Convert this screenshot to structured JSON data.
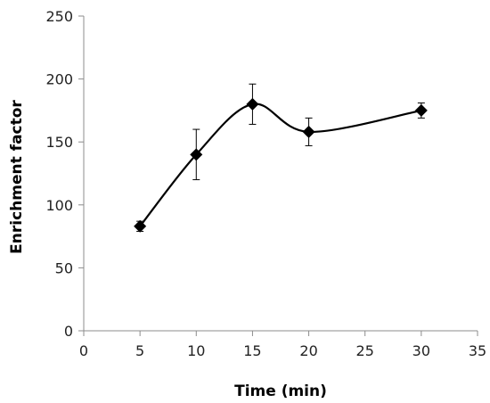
{
  "chart_data": {
    "type": "line",
    "title": "",
    "xlabel": "Time (min)",
    "ylabel": "Enrichment factor",
    "xlim": [
      0,
      35
    ],
    "ylim": [
      0,
      250
    ],
    "xticks": [
      0,
      5,
      10,
      15,
      20,
      25,
      30,
      35
    ],
    "yticks": [
      0,
      50,
      100,
      150,
      200,
      250
    ],
    "grid": false,
    "legend": "none",
    "series": [
      {
        "x": [
          5,
          10,
          15,
          20,
          30
        ],
        "values": [
          83,
          140,
          180,
          158,
          175
        ],
        "error": [
          4,
          20,
          16,
          11,
          6
        ],
        "marker": "diamond",
        "line": "smooth",
        "color": "#000000"
      }
    ]
  }
}
